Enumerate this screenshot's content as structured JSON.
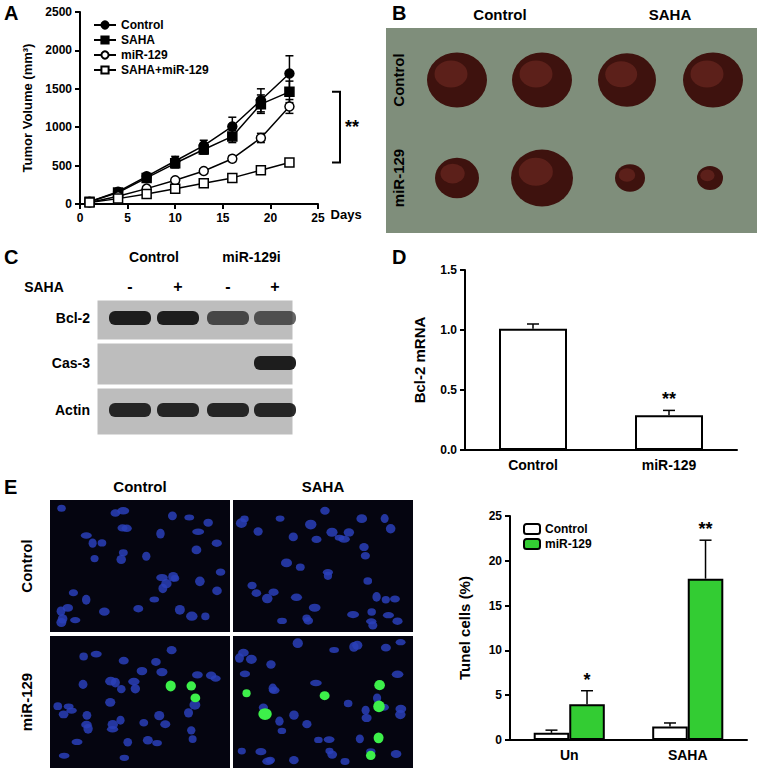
{
  "chart_data": [
    {
      "type": "line",
      "x": [
        1,
        4,
        7,
        10,
        13,
        16,
        19,
        22
      ],
      "xlabel": "Days",
      "ylabel": "Tumor Volume (mm³)",
      "xlim": [
        0,
        25
      ],
      "xticks": [
        0,
        5,
        10,
        15,
        20,
        25
      ],
      "ylim": [
        0,
        2500
      ],
      "yticks": [
        0,
        500,
        1000,
        1500,
        2000,
        2500
      ],
      "grid": false,
      "legend": "upper left",
      "series": [
        {
          "name": "Control",
          "color": "#000000",
          "marker": "circle",
          "values": [
            30,
            160,
            360,
            560,
            760,
            1010,
            1350,
            1700
          ],
          "errors": [
            5,
            20,
            40,
            60,
            70,
            120,
            150,
            230
          ]
        },
        {
          "name": "SAHA",
          "color": "#000000",
          "marker": "square",
          "values": [
            30,
            150,
            340,
            530,
            710,
            880,
            1300,
            1460
          ],
          "errors": [
            5,
            20,
            40,
            60,
            60,
            80,
            120,
            140
          ]
        },
        {
          "name": "miR-129",
          "color": "#000000",
          "marker": "open circle",
          "values": [
            20,
            100,
            200,
            310,
            430,
            590,
            860,
            1270
          ],
          "errors": [
            5,
            15,
            20,
            30,
            30,
            40,
            60,
            90
          ]
        },
        {
          "name": "SAHA+miR-129",
          "color": "#000000",
          "marker": "open square",
          "values": [
            20,
            70,
            130,
            200,
            270,
            340,
            440,
            540
          ],
          "errors": [
            5,
            10,
            15,
            20,
            20,
            20,
            30,
            40
          ]
        }
      ],
      "annotations": [
        {
          "text": "**"
        }
      ]
    },
    {
      "type": "bar",
      "categories": [
        "Control",
        "miR-129"
      ],
      "values": [
        1.01,
        0.29
      ],
      "errors": [
        0.04,
        0.04
      ],
      "color": "#ffffff",
      "ylabel": "Bcl-2 mRNA",
      "ylim": [
        0,
        1.5
      ],
      "yticks": [
        {
          "value": 0,
          "label": "0.0"
        },
        0.5,
        {
          "value": 1,
          "label": "1.0"
        },
        1.5
      ],
      "grid": false,
      "annotations": [
        {
          "text": "**",
          "category": "miR-129"
        }
      ]
    },
    {
      "type": "bar",
      "categories": [
        "Un",
        "SAHA"
      ],
      "ylabel": "Tunel cells (%)",
      "ylim": [
        0,
        25
      ],
      "yticks": [
        0,
        5,
        10,
        15,
        20,
        25
      ],
      "grid": false,
      "legend": "upper left",
      "series": [
        {
          "name": "Control",
          "color": "#ffffff",
          "values": [
            0.8,
            1.5
          ],
          "errors": [
            0.3,
            0.4
          ]
        },
        {
          "name": "miR-129",
          "color": "#33cc33",
          "values": [
            4,
            18
          ],
          "errors": [
            1.5,
            4.3
          ]
        }
      ],
      "annotations": [
        {
          "text": "*",
          "category": "Un",
          "series": "miR-129"
        },
        {
          "text": "**",
          "category": "SAHA",
          "series": "miR-129"
        }
      ]
    }
  ],
  "panels": {
    "labels": [
      "A",
      "B",
      "C",
      "D",
      "E"
    ],
    "B": {
      "columns": [
        "Control",
        "SAHA"
      ],
      "rows": [
        "Control",
        "miR-129"
      ]
    },
    "C": {
      "columns": [
        "Control",
        "miR-129i"
      ],
      "treatment": "SAHA",
      "treatment_marks": [
        "-",
        "+",
        "-",
        "+"
      ],
      "bands": [
        "Bcl-2",
        "Cas-3",
        "Actin"
      ]
    },
    "E": {
      "columns": [
        "Control",
        "SAHA"
      ],
      "rows": [
        "Control",
        "miR-129"
      ]
    }
  }
}
